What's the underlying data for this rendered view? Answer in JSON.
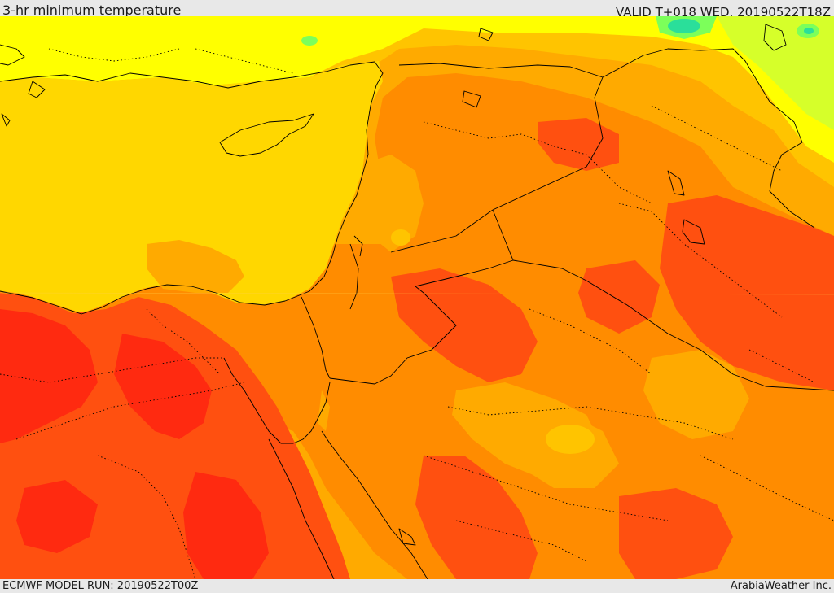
{
  "header": {
    "title": "3-hr minimum temperature",
    "valid": "VALID T+018 WED. 20190522T18Z"
  },
  "footer": {
    "model_run": "ECMWF MODEL RUN: 20190522T00Z",
    "credit": "ArabiaWeather Inc."
  },
  "colors": {
    "deep_red": "#ff2a10",
    "red_orange": "#ff5010",
    "orange": "#ff8c00",
    "light_orange": "#ffaa00",
    "amber": "#ffc400",
    "sea_yellow": "#ffd700",
    "yellow": "#ffff00",
    "yellow_green": "#d6ff2a",
    "green": "#7cff5a",
    "teal": "#2adf9a",
    "border_line": "#000000"
  }
}
